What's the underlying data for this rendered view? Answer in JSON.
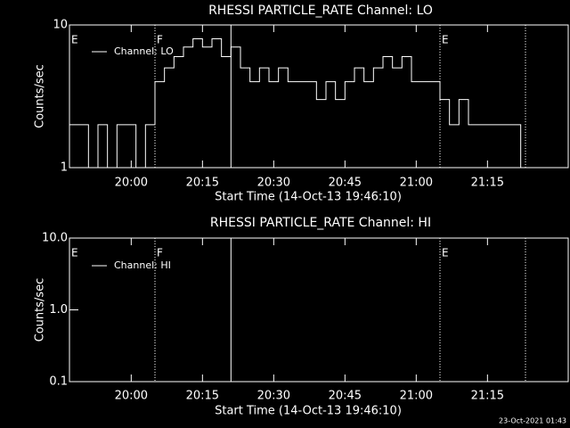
{
  "chart_data": [
    {
      "type": "line",
      "title": "RHESSI PARTICLE_RATE Channel: LO",
      "xlabel": "Start Time (14-Oct-13 19:46:10)",
      "ylabel": "Counts/sec",
      "log_y": true,
      "xlim": [
        "19:47",
        "21:32"
      ],
      "xticks": [
        "20:00",
        "20:15",
        "20:30",
        "20:45",
        "21:00",
        "21:15"
      ],
      "ylim": [
        1,
        10
      ],
      "yticks": [
        1,
        10
      ],
      "x": [
        "19:47",
        "19:49",
        "19:51",
        "19:53",
        "19:55",
        "19:57",
        "19:59",
        "20:01",
        "20:03",
        "20:05",
        "20:07",
        "20:09",
        "20:11",
        "20:13",
        "20:15",
        "20:17",
        "20:19",
        "20:21",
        "20:23",
        "20:25",
        "20:27",
        "20:29",
        "20:31",
        "20:33",
        "20:35",
        "20:37",
        "20:39",
        "20:41",
        "20:43",
        "20:45",
        "20:47",
        "20:49",
        "20:51",
        "20:53",
        "20:55",
        "20:57",
        "20:59",
        "21:01",
        "21:03",
        "21:05",
        "21:07",
        "21:09",
        "21:11",
        "21:13",
        "21:15",
        "21:17",
        "21:19",
        "21:21",
        "21:22"
      ],
      "series": [
        {
          "name": "Channel: LO",
          "color": "#ffffff",
          "values": [
            2,
            2,
            1,
            2,
            1,
            2,
            2,
            1,
            2,
            4,
            5,
            6,
            7,
            8,
            7,
            8,
            6,
            7,
            5,
            4,
            5,
            4,
            5,
            4,
            4,
            4,
            3,
            4,
            3,
            4,
            5,
            4,
            5,
            6,
            5,
            6,
            4,
            4,
            4,
            3,
            2,
            3,
            2,
            2,
            2,
            2,
            2,
            2,
            1
          ]
        }
      ],
      "markers": [
        {
          "x": "20:05",
          "style": "dotted"
        },
        {
          "x": "20:21",
          "style": "solid"
        },
        {
          "x": "21:05",
          "style": "dotted"
        },
        {
          "x": "21:23",
          "style": "dotted"
        }
      ],
      "flags": [
        {
          "x": "19:47",
          "label": "E"
        },
        {
          "x": "20:05",
          "label": "F"
        },
        {
          "x": "21:05",
          "label": "E"
        }
      ]
    },
    {
      "type": "line",
      "title": "RHESSI PARTICLE_RATE Channel: HI",
      "xlabel": "Start Time (14-Oct-13 19:46:10)",
      "ylabel": "Counts/sec",
      "log_y": true,
      "xlim": [
        "19:47",
        "21:32"
      ],
      "xticks": [
        "20:00",
        "20:15",
        "20:30",
        "20:45",
        "21:00",
        "21:15"
      ],
      "ylim": [
        0.1,
        10
      ],
      "yticks": [
        0.1,
        {
          "value": 1,
          "label": "1.0"
        },
        {
          "value": 10,
          "label": "10.0"
        }
      ],
      "x": [],
      "series": [
        {
          "name": "Channel: HI",
          "color": "#ffffff",
          "values": []
        }
      ],
      "markers": [
        {
          "x": "20:05",
          "style": "dotted"
        },
        {
          "x": "20:21",
          "style": "solid"
        },
        {
          "x": "21:05",
          "style": "dotted"
        },
        {
          "x": "21:23",
          "style": "dotted"
        }
      ],
      "flags": [
        {
          "x": "19:47",
          "label": "E"
        },
        {
          "x": "20:05",
          "label": "F"
        },
        {
          "x": "21:05",
          "label": "E"
        }
      ]
    }
  ],
  "footer": "23-Oct-2021 01:43"
}
